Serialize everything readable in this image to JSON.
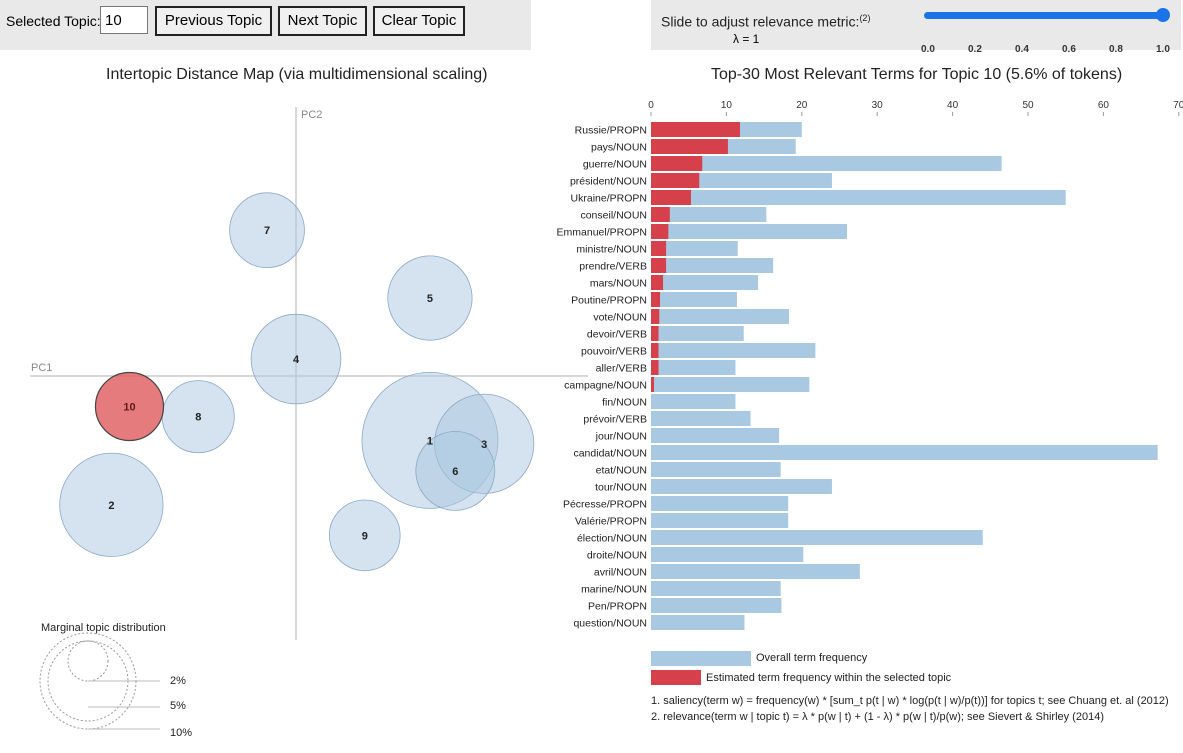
{
  "controls": {
    "selected_topic_label": "Selected Topic:",
    "selected_topic_value": "10",
    "previous_label": "Previous Topic",
    "next_label": "Next Topic",
    "clear_label": "Clear Topic",
    "slider_label": "Slide to adjust relevance metric:",
    "slider_note": "(2)",
    "lambda_text": "λ = 1",
    "slider_value": 1.0,
    "slider_ticks": [
      "0.0",
      "0.2",
      "0.4",
      "0.6",
      "0.8",
      "1.0"
    ]
  },
  "map": {
    "title": "Intertopic Distance Map (via multidimensional scaling)",
    "pc1_label": "PC1",
    "pc2_label": "PC2",
    "selected_color": "#e05a5e",
    "default_color": "#a9c7e0",
    "topics": [
      {
        "id": "1",
        "pc1": 0.185,
        "pc2": -0.095,
        "size": 1.0
      },
      {
        "id": "2",
        "pc1": -0.255,
        "pc2": -0.19,
        "size": 0.76
      },
      {
        "id": "3",
        "pc1": 0.26,
        "pc2": -0.1,
        "size": 0.73
      },
      {
        "id": "4",
        "pc1": 0.0,
        "pc2": 0.025,
        "size": 0.66
      },
      {
        "id": "5",
        "pc1": 0.185,
        "pc2": 0.115,
        "size": 0.62
      },
      {
        "id": "6",
        "pc1": 0.22,
        "pc2": -0.14,
        "size": 0.58
      },
      {
        "id": "7",
        "pc1": -0.04,
        "pc2": 0.215,
        "size": 0.55
      },
      {
        "id": "8",
        "pc1": -0.135,
        "pc2": -0.06,
        "size": 0.53
      },
      {
        "id": "9",
        "pc1": 0.095,
        "pc2": -0.235,
        "size": 0.52
      },
      {
        "id": "10",
        "pc1": -0.23,
        "pc2": -0.045,
        "size": 0.5,
        "selected": true
      }
    ],
    "marginal_title": "Marginal topic distribution",
    "marginal_labels": [
      "2%",
      "5%",
      "10%"
    ]
  },
  "terms": {
    "title": "Top-30 Most Relevant Terms for Topic 10 (5.6% of tokens)",
    "axis_ticks": [
      0,
      10,
      20,
      30,
      40,
      50,
      60,
      70
    ],
    "overall_color": "#a9c9e2",
    "topic_color": "#d6404a",
    "items": [
      {
        "term": "Russie/PROPN",
        "overall": 20.0,
        "topic": 11.8
      },
      {
        "term": "pays/NOUN",
        "overall": 19.2,
        "topic": 10.2
      },
      {
        "term": "guerre/NOUN",
        "overall": 46.5,
        "topic": 6.8
      },
      {
        "term": "président/NOUN",
        "overall": 24.0,
        "topic": 6.4
      },
      {
        "term": "Ukraine/PROPN",
        "overall": 55.0,
        "topic": 5.3
      },
      {
        "term": "conseil/NOUN",
        "overall": 15.3,
        "topic": 2.5
      },
      {
        "term": "Emmanuel/PROPN",
        "overall": 26.0,
        "topic": 2.3
      },
      {
        "term": "ministre/NOUN",
        "overall": 11.5,
        "topic": 2.0
      },
      {
        "term": "prendre/VERB",
        "overall": 16.2,
        "topic": 2.0
      },
      {
        "term": "mars/NOUN",
        "overall": 14.2,
        "topic": 1.6
      },
      {
        "term": "Poutine/PROPN",
        "overall": 11.4,
        "topic": 1.2
      },
      {
        "term": "vote/NOUN",
        "overall": 18.3,
        "topic": 1.1
      },
      {
        "term": "devoir/VERB",
        "overall": 12.3,
        "topic": 1.0
      },
      {
        "term": "pouvoir/VERB",
        "overall": 21.8,
        "topic": 1.0
      },
      {
        "term": "aller/VERB",
        "overall": 11.2,
        "topic": 1.0
      },
      {
        "term": "campagne/NOUN",
        "overall": 21.0,
        "topic": 0.4
      },
      {
        "term": "fin/NOUN",
        "overall": 11.2,
        "topic": 0
      },
      {
        "term": "prévoir/VERB",
        "overall": 13.2,
        "topic": 0
      },
      {
        "term": "jour/NOUN",
        "overall": 17.0,
        "topic": 0
      },
      {
        "term": "candidat/NOUN",
        "overall": 67.2,
        "topic": 0
      },
      {
        "term": "etat/NOUN",
        "overall": 17.2,
        "topic": 0
      },
      {
        "term": "tour/NOUN",
        "overall": 24.0,
        "topic": 0
      },
      {
        "term": "Pécresse/PROPN",
        "overall": 18.2,
        "topic": 0
      },
      {
        "term": "Valérie/PROPN",
        "overall": 18.2,
        "topic": 0
      },
      {
        "term": "élection/NOUN",
        "overall": 44.0,
        "topic": 0
      },
      {
        "term": "droite/NOUN",
        "overall": 20.2,
        "topic": 0
      },
      {
        "term": "avril/NOUN",
        "overall": 27.7,
        "topic": 0
      },
      {
        "term": "marine/NOUN",
        "overall": 17.2,
        "topic": 0
      },
      {
        "term": "Pen/PROPN",
        "overall": 17.3,
        "topic": 0
      },
      {
        "term": "question/NOUN",
        "overall": 12.4,
        "topic": 0
      }
    ],
    "legend_overall": "Overall term frequency",
    "legend_topic": "Estimated term frequency within the selected topic",
    "footnote1": "1. saliency(term w) = frequency(w) * [sum_t p(t | w) * log(p(t | w)/p(t))] for topics t; see Chuang et. al (2012)",
    "footnote2": "2. relevance(term w | topic t) = λ * p(w | t) + (1 - λ) * p(w | t)/p(w); see Sievert & Shirley (2014)"
  }
}
